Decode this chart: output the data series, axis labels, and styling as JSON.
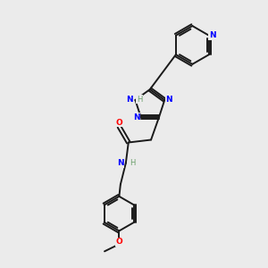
{
  "background_color": "#ebebeb",
  "bond_color": "#1a1a1a",
  "N_color": "#0000ff",
  "O_color": "#ff0000",
  "C_color": "#1a1a1a",
  "H_color": "#6a9f6a",
  "figsize": [
    3.0,
    3.0
  ],
  "dpi": 100,
  "xlim": [
    0,
    10
  ],
  "ylim": [
    0,
    10
  ],
  "lw": 1.4,
  "fs": 6.5
}
